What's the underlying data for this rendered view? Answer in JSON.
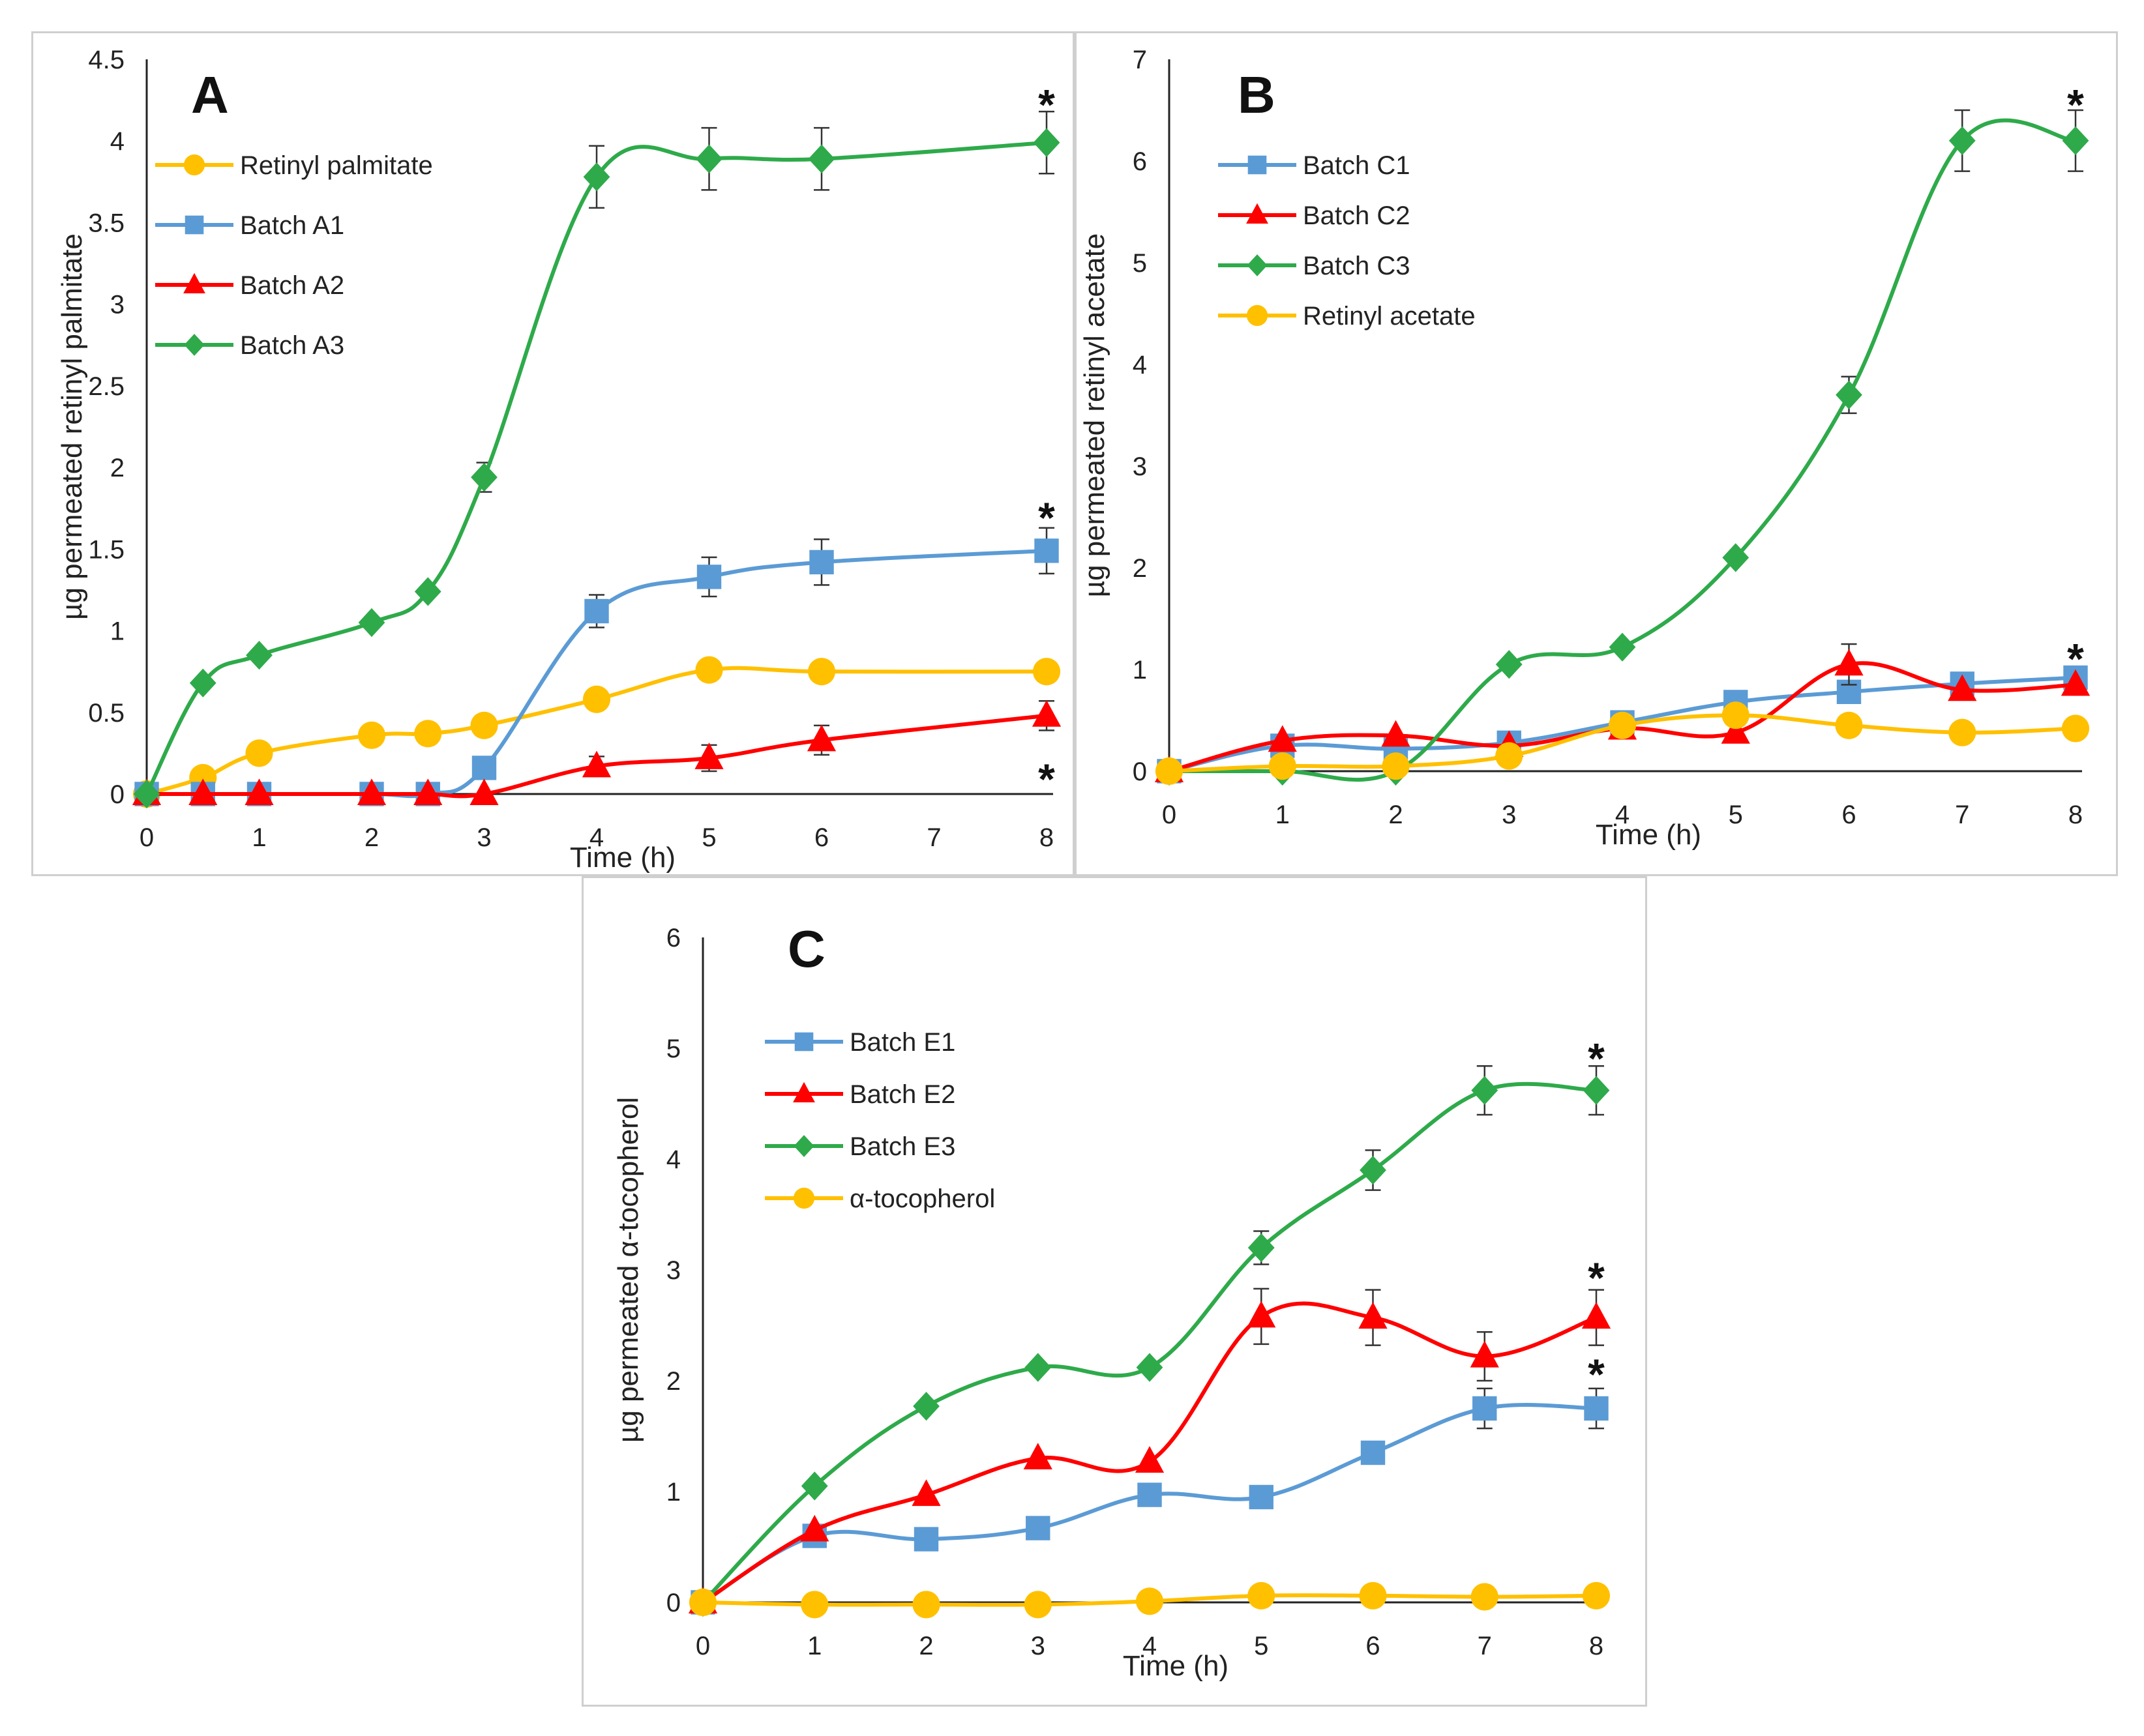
{
  "colors": {
    "blue": "#5b9bd5",
    "red": "#ff0000",
    "green": "#2eaa4a",
    "yellow": "#ffc000"
  },
  "chart_data": [
    {
      "type": "line",
      "panel_label": "A",
      "xlabel": "Time (h)",
      "ylabel": "µg permeated retinyl palmitate",
      "xlim": [
        0,
        8
      ],
      "ylim": [
        0,
        4.5
      ],
      "x_ticks": [
        "0",
        "1",
        "2",
        "3",
        "4",
        "5",
        "6",
        "7",
        "8"
      ],
      "y_ticks": [
        "0",
        "0.5",
        "1",
        "1.5",
        "2",
        "2.5",
        "3",
        "3.5",
        "4",
        "4.5"
      ],
      "series": [
        {
          "name": "Retinyl palmitate",
          "color": "yellow",
          "marker": "circle",
          "x": [
            0,
            0.5,
            1,
            2,
            2.5,
            3,
            4,
            5,
            6,
            8
          ],
          "y": [
            0,
            0.1,
            0.25,
            0.36,
            0.37,
            0.42,
            0.58,
            0.76,
            0.75,
            0.75
          ],
          "err": [
            0,
            0,
            0,
            0,
            0,
            0,
            0,
            0,
            0,
            0
          ]
        },
        {
          "name": "Batch A1",
          "color": "blue",
          "marker": "square",
          "x": [
            0,
            0.5,
            1,
            2,
            2.5,
            3,
            4,
            5,
            6,
            8
          ],
          "y": [
            0,
            0,
            0,
            0,
            0,
            0.16,
            1.12,
            1.33,
            1.42,
            1.49
          ],
          "err": [
            0,
            0,
            0,
            0,
            0,
            0,
            0.1,
            0.12,
            0.14,
            0.14
          ]
        },
        {
          "name": "Batch A2",
          "color": "red",
          "marker": "triangle",
          "x": [
            0,
            0.5,
            1,
            2,
            2.5,
            3,
            4,
            5,
            6,
            8
          ],
          "y": [
            0,
            0,
            0,
            0,
            0,
            0,
            0.17,
            0.22,
            0.33,
            0.48
          ],
          "err": [
            0,
            0,
            0,
            0,
            0,
            0,
            0.06,
            0.08,
            0.09,
            0.09
          ]
        },
        {
          "name": "Batch A3",
          "color": "green",
          "marker": "diamond",
          "x": [
            0,
            0.5,
            1,
            2,
            2.5,
            3,
            4,
            5,
            6,
            8
          ],
          "y": [
            0,
            0.68,
            0.85,
            1.05,
            1.24,
            1.94,
            3.78,
            3.89,
            3.89,
            3.99
          ],
          "err": [
            0,
            0,
            0,
            0,
            0,
            0.09,
            0.19,
            0.19,
            0.19,
            0.19
          ]
        }
      ],
      "annotations": [
        {
          "text": "*",
          "x": 8,
          "y": 4.25
        },
        {
          "text": "*",
          "x": 8,
          "y": 1.72
        },
        {
          "text": "*",
          "x": 8,
          "y": 0.12
        }
      ]
    },
    {
      "type": "line",
      "panel_label": "B",
      "xlabel": "Time (h)",
      "ylabel": "µg permeated retinyl acetate",
      "xlim": [
        0,
        8
      ],
      "ylim": [
        0,
        7
      ],
      "x_ticks": [
        "0",
        "1",
        "2",
        "3",
        "4",
        "5",
        "6",
        "7",
        "8"
      ],
      "y_ticks": [
        "0",
        "1",
        "2",
        "3",
        "4",
        "5",
        "6",
        "7"
      ],
      "series": [
        {
          "name": "Batch C1",
          "color": "blue",
          "marker": "square",
          "x": [
            0,
            1,
            2,
            3,
            4,
            5,
            6,
            7,
            8
          ],
          "y": [
            0,
            0.25,
            0.22,
            0.28,
            0.48,
            0.68,
            0.78,
            0.86,
            0.92
          ],
          "err": [
            0,
            0,
            0,
            0,
            0,
            0,
            0,
            0,
            0
          ]
        },
        {
          "name": "Batch C2",
          "color": "red",
          "marker": "triangle",
          "x": [
            0,
            1,
            2,
            3,
            4,
            5,
            6,
            7,
            8
          ],
          "y": [
            0,
            0.3,
            0.35,
            0.25,
            0.42,
            0.38,
            1.05,
            0.8,
            0.85
          ],
          "err": [
            0,
            0,
            0,
            0,
            0,
            0,
            0.2,
            0,
            0
          ]
        },
        {
          "name": "Batch C3",
          "color": "green",
          "marker": "diamond",
          "x": [
            0,
            1,
            2,
            3,
            4,
            5,
            6,
            7,
            8
          ],
          "y": [
            0,
            0,
            0,
            1.05,
            1.22,
            2.1,
            3.7,
            6.2,
            6.2
          ],
          "err": [
            0,
            0,
            0,
            0,
            0,
            0,
            0.18,
            0.3,
            0.3
          ]
        },
        {
          "name": "Retinyl acetate",
          "color": "yellow",
          "marker": "circle",
          "x": [
            0,
            1,
            2,
            3,
            4,
            5,
            6,
            7,
            8
          ],
          "y": [
            0,
            0.05,
            0.05,
            0.15,
            0.45,
            0.55,
            0.45,
            0.38,
            0.42
          ],
          "err": [
            0,
            0,
            0,
            0,
            0,
            0,
            0,
            0,
            0
          ]
        }
      ],
      "annotations": [
        {
          "text": "*",
          "x": 8,
          "y": 6.6
        },
        {
          "text": "*",
          "x": 8,
          "y": 1.15
        }
      ]
    },
    {
      "type": "line",
      "panel_label": "C",
      "xlabel": "Time (h)",
      "ylabel": "µg permeated α-tocopherol",
      "xlim": [
        0,
        8
      ],
      "ylim": [
        0,
        6
      ],
      "x_ticks": [
        "0",
        "1",
        "2",
        "3",
        "4",
        "5",
        "6",
        "7",
        "8"
      ],
      "y_ticks": [
        "0",
        "1",
        "2",
        "3",
        "4",
        "5",
        "6"
      ],
      "series": [
        {
          "name": "Batch E1",
          "color": "blue",
          "marker": "square",
          "x": [
            0,
            1,
            2,
            3,
            4,
            5,
            6,
            7,
            8
          ],
          "y": [
            0,
            0.6,
            0.57,
            0.67,
            0.97,
            0.95,
            1.35,
            1.75,
            1.75
          ],
          "err": [
            0,
            0,
            0,
            0,
            0,
            0,
            0,
            0.18,
            0.18
          ]
        },
        {
          "name": "Batch E2",
          "color": "red",
          "marker": "triangle",
          "x": [
            0,
            1,
            2,
            3,
            4,
            5,
            6,
            7,
            8
          ],
          "y": [
            0,
            0.65,
            0.97,
            1.3,
            1.27,
            2.58,
            2.57,
            2.22,
            2.57
          ],
          "err": [
            0,
            0,
            0,
            0,
            0,
            0.25,
            0.25,
            0.22,
            0.25
          ]
        },
        {
          "name": "Batch E3",
          "color": "green",
          "marker": "diamond",
          "x": [
            0,
            1,
            2,
            3,
            4,
            5,
            6,
            7,
            8
          ],
          "y": [
            0,
            1.05,
            1.77,
            2.12,
            2.12,
            3.2,
            3.9,
            4.62,
            4.62
          ],
          "err": [
            0,
            0,
            0,
            0,
            0,
            0.15,
            0.18,
            0.22,
            0.22
          ]
        },
        {
          "name": "α-tocopherol",
          "color": "yellow",
          "marker": "circle",
          "x": [
            0,
            1,
            2,
            3,
            4,
            5,
            6,
            7,
            8
          ],
          "y": [
            0,
            -0.02,
            -0.02,
            -0.02,
            0.01,
            0.06,
            0.06,
            0.05,
            0.06
          ],
          "err": [
            0,
            0,
            0,
            0,
            0,
            0,
            0,
            0,
            0
          ]
        }
      ],
      "annotations": [
        {
          "text": "*",
          "x": 8,
          "y": 4.95
        },
        {
          "text": "*",
          "x": 8,
          "y": 2.97
        },
        {
          "text": "*",
          "x": 8,
          "y": 2.1
        }
      ]
    }
  ]
}
